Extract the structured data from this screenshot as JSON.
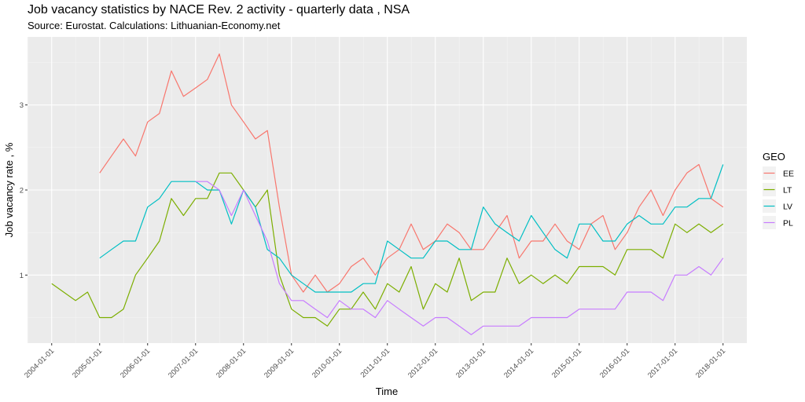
{
  "chart_data": {
    "type": "line",
    "title": "Job vacancy statistics by NACE Rev. 2 activity - quarterly data , NSA",
    "subtitle": "Source: Eurostat. Calculations: Lithuanian-Economy.net",
    "xlabel": "Time",
    "ylabel": "Job vacancy rate , %",
    "x_ticks": [
      "2004-01-01",
      "2005-01-01",
      "2006-01-01",
      "2007-01-01",
      "2008-01-01",
      "2009-01-01",
      "2010-01-01",
      "2011-01-01",
      "2012-01-01",
      "2013-01-01",
      "2014-01-01",
      "2015-01-01",
      "2016-01-01",
      "2017-01-01",
      "2018-01-01"
    ],
    "y_ticks": [
      1,
      2,
      3
    ],
    "ylim": [
      0.2,
      3.8
    ],
    "xlim": [
      "2003-07-01",
      "2018-07-01"
    ],
    "grid": true,
    "legend": {
      "title": "GEO",
      "position": "right"
    },
    "series": [
      {
        "name": "EE",
        "color": "#F8766D",
        "x": [
          "2005-01-01",
          "2005-04-01",
          "2005-07-01",
          "2005-10-01",
          "2006-01-01",
          "2006-04-01",
          "2006-07-01",
          "2006-10-01",
          "2007-01-01",
          "2007-04-01",
          "2007-07-01",
          "2007-10-01",
          "2008-01-01",
          "2008-04-01",
          "2008-07-01",
          "2008-10-01",
          "2009-01-01",
          "2009-04-01",
          "2009-07-01",
          "2009-10-01",
          "2010-01-01",
          "2010-04-01",
          "2010-07-01",
          "2010-10-01",
          "2011-01-01",
          "2011-04-01",
          "2011-07-01",
          "2011-10-01",
          "2012-01-01",
          "2012-04-01",
          "2012-07-01",
          "2012-10-01",
          "2013-01-01",
          "2013-04-01",
          "2013-07-01",
          "2013-10-01",
          "2014-01-01",
          "2014-04-01",
          "2014-07-01",
          "2014-10-01",
          "2015-01-01",
          "2015-04-01",
          "2015-07-01",
          "2015-10-01",
          "2016-01-01",
          "2016-04-01",
          "2016-07-01",
          "2016-10-01",
          "2017-01-01",
          "2017-04-01",
          "2017-07-01",
          "2017-10-01",
          "2018-01-01"
        ],
        "values": [
          2.2,
          2.4,
          2.6,
          2.4,
          2.8,
          2.9,
          3.4,
          3.1,
          3.2,
          3.3,
          3.6,
          3.0,
          2.8,
          2.6,
          2.7,
          1.8,
          1.0,
          0.8,
          1.0,
          0.8,
          0.9,
          1.1,
          1.2,
          1.0,
          1.2,
          1.3,
          1.6,
          1.3,
          1.4,
          1.6,
          1.5,
          1.3,
          1.3,
          1.5,
          1.7,
          1.2,
          1.4,
          1.4,
          1.6,
          1.4,
          1.3,
          1.6,
          1.7,
          1.3,
          1.5,
          1.8,
          2.0,
          1.7,
          2.0,
          2.2,
          2.3,
          1.9,
          1.8
        ]
      },
      {
        "name": "LT",
        "color": "#7CAE00",
        "x": [
          "2004-01-01",
          "2004-07-01",
          "2004-10-01",
          "2005-01-01",
          "2005-04-01",
          "2005-07-01",
          "2005-10-01",
          "2006-01-01",
          "2006-04-01",
          "2006-07-01",
          "2006-10-01",
          "2007-01-01",
          "2007-04-01",
          "2007-07-01",
          "2007-10-01",
          "2008-01-01",
          "2008-04-01",
          "2008-07-01",
          "2008-10-01",
          "2009-01-01",
          "2009-04-01",
          "2009-07-01",
          "2009-10-01",
          "2010-01-01",
          "2010-04-01",
          "2010-07-01",
          "2010-10-01",
          "2011-01-01",
          "2011-04-01",
          "2011-07-01",
          "2011-10-01",
          "2012-01-01",
          "2012-04-01",
          "2012-07-01",
          "2012-10-01",
          "2013-01-01",
          "2013-04-01",
          "2013-07-01",
          "2013-10-01",
          "2014-01-01",
          "2014-04-01",
          "2014-07-01",
          "2014-10-01",
          "2015-01-01",
          "2015-04-01",
          "2015-07-01",
          "2015-10-01",
          "2016-01-01",
          "2016-04-01",
          "2016-07-01",
          "2016-10-01",
          "2017-01-01",
          "2017-04-01",
          "2017-07-01",
          "2017-10-01",
          "2018-01-01"
        ],
        "values": [
          0.9,
          0.7,
          0.8,
          0.5,
          0.5,
          0.6,
          1.0,
          1.2,
          1.4,
          1.9,
          1.7,
          1.9,
          1.9,
          2.2,
          2.2,
          2.0,
          1.8,
          2.0,
          1.0,
          0.6,
          0.5,
          0.5,
          0.4,
          0.6,
          0.6,
          0.8,
          0.6,
          0.9,
          0.8,
          1.1,
          0.6,
          0.9,
          0.8,
          1.2,
          0.7,
          0.8,
          0.8,
          1.2,
          0.9,
          1.0,
          0.9,
          1.0,
          0.9,
          1.1,
          1.1,
          1.1,
          1.0,
          1.3,
          1.3,
          1.3,
          1.2,
          1.6,
          1.5,
          1.6,
          1.5,
          1.6
        ]
      },
      {
        "name": "LV",
        "color": "#00BFC4",
        "x": [
          "2005-01-01",
          "2005-04-01",
          "2005-07-01",
          "2005-10-01",
          "2006-01-01",
          "2006-04-01",
          "2006-07-01",
          "2006-10-01",
          "2007-01-01",
          "2007-04-01",
          "2007-07-01",
          "2007-10-01",
          "2008-01-01",
          "2008-04-01",
          "2008-07-01",
          "2008-10-01",
          "2009-01-01",
          "2009-04-01",
          "2009-07-01",
          "2009-10-01",
          "2010-01-01",
          "2010-04-01",
          "2010-07-01",
          "2010-10-01",
          "2011-01-01",
          "2011-04-01",
          "2011-07-01",
          "2011-10-01",
          "2012-01-01",
          "2012-04-01",
          "2012-07-01",
          "2012-10-01",
          "2013-01-01",
          "2013-04-01",
          "2013-07-01",
          "2013-10-01",
          "2014-01-01",
          "2014-04-01",
          "2014-07-01",
          "2014-10-01",
          "2015-01-01",
          "2015-04-01",
          "2015-07-01",
          "2015-10-01",
          "2016-01-01",
          "2016-04-01",
          "2016-07-01",
          "2016-10-01",
          "2017-01-01",
          "2017-04-01",
          "2017-07-01",
          "2017-10-01",
          "2018-01-01"
        ],
        "values": [
          1.2,
          1.3,
          1.4,
          1.4,
          1.8,
          1.9,
          2.1,
          2.1,
          2.1,
          2.0,
          2.0,
          1.6,
          2.0,
          1.8,
          1.3,
          1.2,
          1.0,
          0.9,
          0.8,
          0.8,
          0.8,
          0.8,
          0.9,
          0.9,
          1.4,
          1.3,
          1.2,
          1.2,
          1.4,
          1.4,
          1.3,
          1.3,
          1.8,
          1.6,
          1.5,
          1.4,
          1.7,
          1.5,
          1.3,
          1.2,
          1.6,
          1.6,
          1.4,
          1.4,
          1.6,
          1.7,
          1.6,
          1.6,
          1.8,
          1.8,
          1.9,
          1.9,
          2.3
        ]
      },
      {
        "name": "PL",
        "color": "#C77CFF",
        "x": [
          "2007-01-01",
          "2007-04-01",
          "2007-07-01",
          "2007-10-01",
          "2008-01-01",
          "2008-04-01",
          "2008-07-01",
          "2008-10-01",
          "2009-01-01",
          "2009-04-01",
          "2009-07-01",
          "2009-10-01",
          "2010-01-01",
          "2010-04-01",
          "2010-07-01",
          "2010-10-01",
          "2011-01-01",
          "2011-04-01",
          "2011-07-01",
          "2011-10-01",
          "2012-01-01",
          "2012-04-01",
          "2012-07-01",
          "2012-10-01",
          "2013-01-01",
          "2013-04-01",
          "2013-07-01",
          "2013-10-01",
          "2014-01-01",
          "2014-04-01",
          "2014-07-01",
          "2014-10-01",
          "2015-01-01",
          "2015-04-01",
          "2015-07-01",
          "2015-10-01",
          "2016-01-01",
          "2016-04-01",
          "2016-07-01",
          "2016-10-01",
          "2017-01-01",
          "2017-04-01",
          "2017-07-01",
          "2017-10-01",
          "2018-01-01"
        ],
        "values": [
          2.1,
          2.1,
          2.0,
          1.7,
          2.0,
          1.7,
          1.4,
          0.9,
          0.7,
          0.7,
          0.6,
          0.5,
          0.7,
          0.6,
          0.6,
          0.5,
          0.7,
          0.6,
          0.5,
          0.4,
          0.5,
          0.5,
          0.4,
          0.3,
          0.4,
          0.4,
          0.4,
          0.4,
          0.5,
          0.5,
          0.5,
          0.5,
          0.6,
          0.6,
          0.6,
          0.6,
          0.8,
          0.8,
          0.8,
          0.7,
          1.0,
          1.0,
          1.1,
          1.0,
          1.2
        ]
      }
    ]
  }
}
